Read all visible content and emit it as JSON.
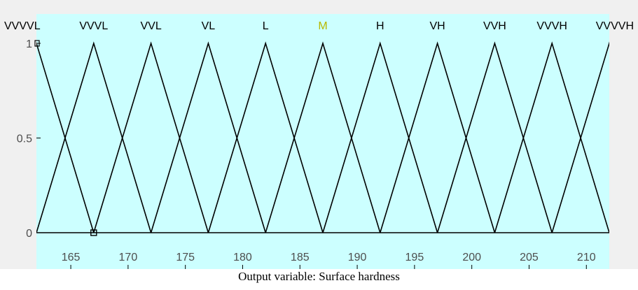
{
  "colors": {
    "plot_background": "#ccffff",
    "figure_background": "#f0f0f0",
    "line": "#000000",
    "tick_text": "#4d4d4d",
    "label_default": "#000000",
    "label_highlight": "#b8b800"
  },
  "caption": "Output variable: Surface hardness",
  "chart_data": {
    "type": "line",
    "title": "",
    "xlabel": "Output variable: Surface hardness",
    "ylabel": "",
    "xlim": [
      162,
      212
    ],
    "ylim": [
      0,
      1
    ],
    "xticks": [
      165,
      170,
      175,
      180,
      185,
      190,
      195,
      200,
      205,
      210
    ],
    "yticks": [
      0,
      0.5,
      1
    ],
    "grid": false,
    "series": [
      {
        "name": "VVVVL",
        "shape": "triangle",
        "params": [
          157,
          162,
          167
        ],
        "color_key": "label_default"
      },
      {
        "name": "VVVL",
        "shape": "triangle",
        "params": [
          162,
          167,
          172
        ],
        "color_key": "label_default"
      },
      {
        "name": "VVL",
        "shape": "triangle",
        "params": [
          167,
          172,
          177
        ],
        "color_key": "label_default"
      },
      {
        "name": "VL",
        "shape": "triangle",
        "params": [
          172,
          177,
          182
        ],
        "color_key": "label_default"
      },
      {
        "name": "L",
        "shape": "triangle",
        "params": [
          177,
          182,
          187
        ],
        "color_key": "label_default"
      },
      {
        "name": "M",
        "shape": "triangle",
        "params": [
          182,
          187,
          192
        ],
        "color_key": "label_highlight"
      },
      {
        "name": "H",
        "shape": "triangle",
        "params": [
          187,
          192,
          197
        ],
        "color_key": "label_default"
      },
      {
        "name": "VH",
        "shape": "triangle",
        "params": [
          192,
          197,
          202
        ],
        "color_key": "label_default"
      },
      {
        "name": "VVH",
        "shape": "triangle",
        "params": [
          197,
          202,
          207
        ],
        "color_key": "label_default"
      },
      {
        "name": "VVVH",
        "shape": "triangle",
        "params": [
          202,
          207,
          212
        ],
        "color_key": "label_default"
      },
      {
        "name": "VVVVH",
        "shape": "triangle",
        "params": [
          207,
          212,
          217
        ],
        "color_key": "label_default"
      }
    ],
    "selected_marker": {
      "x": 167,
      "y": 0
    }
  }
}
